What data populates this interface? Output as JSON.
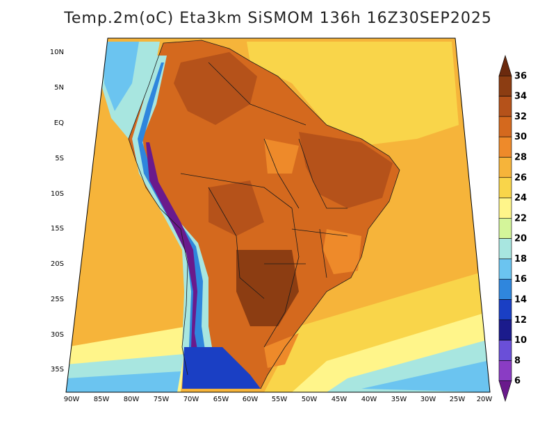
{
  "title": "Temp.2m(oC) Eta3km SiSMOM 136h 16Z30SEP2025",
  "map": {
    "lat_labels": [
      "10N",
      "5N",
      "EQ",
      "5S",
      "10S",
      "15S",
      "20S",
      "25S",
      "30S",
      "35S"
    ],
    "lon_labels": [
      "90W",
      "85W",
      "80W",
      "75W",
      "70W",
      "65W",
      "60W",
      "55W",
      "50W",
      "45W",
      "40W",
      "35W",
      "30W",
      "25W",
      "20W"
    ],
    "lat_values": [
      10,
      5,
      0,
      -5,
      -10,
      -15,
      -20,
      -25,
      -30,
      -35
    ],
    "lon_values": [
      -90,
      -85,
      -80,
      -75,
      -70,
      -65,
      -60,
      -55,
      -50,
      -45,
      -40,
      -35,
      -30,
      -25,
      -20
    ]
  },
  "colorbar": {
    "labels": [
      "36",
      "34",
      "32",
      "30",
      "28",
      "26",
      "24",
      "22",
      "20",
      "18",
      "16",
      "14",
      "12",
      "10",
      "8",
      "6"
    ],
    "colors": [
      "#6b2a0e",
      "#8c3d12",
      "#b5521a",
      "#d4691e",
      "#ee8a2a",
      "#f6b43a",
      "#f9d54a",
      "#fff58a",
      "#d4f59a",
      "#a8e6e0",
      "#6bc4f0",
      "#2f86dd",
      "#1a3fc4",
      "#1b1b8c",
      "#6a4fd8",
      "#8a3cc4",
      "#6a1a8c"
    ]
  }
}
